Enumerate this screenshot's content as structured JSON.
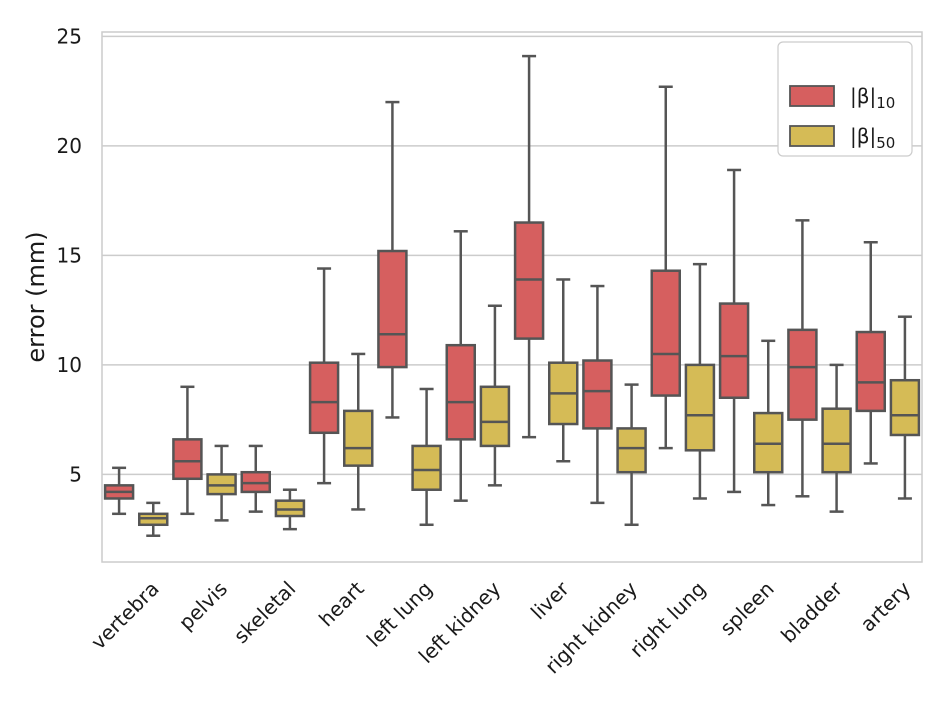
{
  "chart_data": {
    "type": "boxplot",
    "title": "",
    "xlabel": "",
    "ylabel": "error (mm)",
    "ylim": [
      1.0,
      25.2
    ],
    "yticks": [
      5,
      10,
      15,
      20,
      25
    ],
    "grid": "horizontal",
    "legend_position": "top-right",
    "categories": [
      "vertebra",
      "pelvis",
      "skeletal",
      "heart",
      "left lung",
      "left kidney",
      "liver",
      "right kidney",
      "right lung",
      "spleen",
      "bladder",
      "artery"
    ],
    "series": [
      {
        "name": "|β|",
        "subscript": "10",
        "color": "#d65f5f",
        "boxes": [
          {
            "whislo": 3.2,
            "q1": 3.9,
            "med": 4.2,
            "q3": 4.5,
            "whishi": 5.3
          },
          {
            "whislo": 3.2,
            "q1": 4.8,
            "med": 5.6,
            "q3": 6.6,
            "whishi": 9.0
          },
          {
            "whislo": 3.3,
            "q1": 4.2,
            "med": 4.6,
            "q3": 5.1,
            "whishi": 6.3
          },
          {
            "whislo": 4.6,
            "q1": 6.9,
            "med": 8.3,
            "q3": 10.1,
            "whishi": 14.4
          },
          {
            "whislo": 7.6,
            "q1": 9.9,
            "med": 11.4,
            "q3": 15.2,
            "whishi": 22.0
          },
          {
            "whislo": 3.8,
            "q1": 6.6,
            "med": 8.3,
            "q3": 10.9,
            "whishi": 16.1
          },
          {
            "whislo": 6.7,
            "q1": 11.2,
            "med": 13.9,
            "q3": 16.5,
            "whishi": 24.1
          },
          {
            "whislo": 3.7,
            "q1": 7.1,
            "med": 8.8,
            "q3": 10.2,
            "whishi": 13.6
          },
          {
            "whislo": 6.2,
            "q1": 8.6,
            "med": 10.5,
            "q3": 14.3,
            "whishi": 22.7
          },
          {
            "whislo": 4.2,
            "q1": 8.5,
            "med": 10.4,
            "q3": 12.8,
            "whishi": 18.9
          },
          {
            "whislo": 4.0,
            "q1": 7.5,
            "med": 9.9,
            "q3": 11.6,
            "whishi": 16.6
          },
          {
            "whislo": 5.5,
            "q1": 7.9,
            "med": 9.2,
            "q3": 11.5,
            "whishi": 15.6
          }
        ]
      },
      {
        "name": "|β|",
        "subscript": "50",
        "color": "#d5bb56",
        "boxes": [
          {
            "whislo": 2.2,
            "q1": 2.7,
            "med": 3.0,
            "q3": 3.2,
            "whishi": 3.7
          },
          {
            "whislo": 2.9,
            "q1": 4.1,
            "med": 4.5,
            "q3": 5.0,
            "whishi": 6.3
          },
          {
            "whislo": 2.5,
            "q1": 3.1,
            "med": 3.4,
            "q3": 3.8,
            "whishi": 4.3
          },
          {
            "whislo": 3.4,
            "q1": 5.4,
            "med": 6.2,
            "q3": 7.9,
            "whishi": 10.5
          },
          {
            "whislo": 2.7,
            "q1": 4.3,
            "med": 5.2,
            "q3": 6.3,
            "whishi": 8.9
          },
          {
            "whislo": 4.5,
            "q1": 6.3,
            "med": 7.4,
            "q3": 9.0,
            "whishi": 12.7
          },
          {
            "whislo": 5.6,
            "q1": 7.3,
            "med": 8.7,
            "q3": 10.1,
            "whishi": 13.9
          },
          {
            "whislo": 2.7,
            "q1": 5.1,
            "med": 6.2,
            "q3": 7.1,
            "whishi": 9.1
          },
          {
            "whislo": 3.9,
            "q1": 6.1,
            "med": 7.7,
            "q3": 10.0,
            "whishi": 14.6
          },
          {
            "whislo": 3.6,
            "q1": 5.1,
            "med": 6.4,
            "q3": 7.8,
            "whishi": 11.1
          },
          {
            "whislo": 3.3,
            "q1": 5.1,
            "med": 6.4,
            "q3": 8.0,
            "whishi": 10.0
          },
          {
            "whislo": 3.9,
            "q1": 6.8,
            "med": 7.7,
            "q3": 9.3,
            "whishi": 12.2
          }
        ]
      }
    ]
  }
}
